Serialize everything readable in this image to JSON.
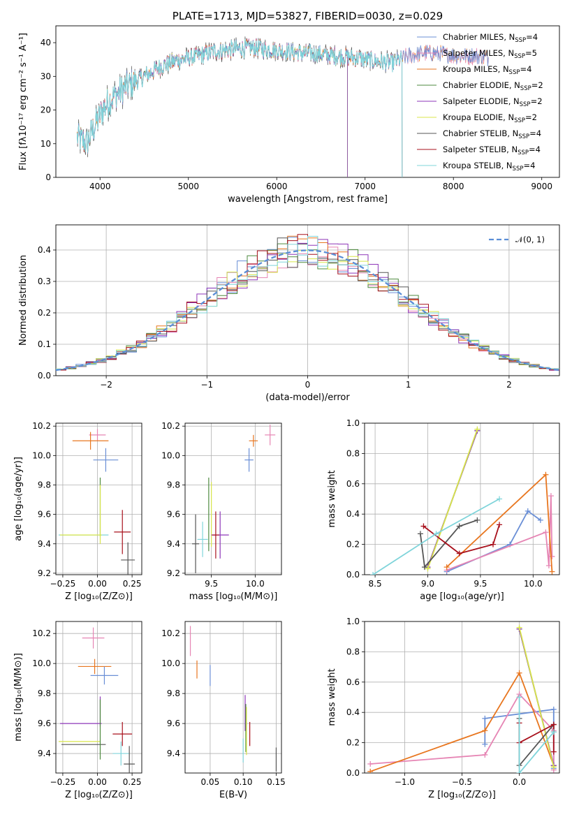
{
  "colors": {
    "chabrier_miles": "#6a8fd6",
    "salpeter_miles": "#e685b4",
    "kroupa_miles": "#e8761f",
    "chabrier_elodie": "#4e8a3f",
    "salpeter_elodie": "#8e36b8",
    "kroupa_elodie": "#d8e64a",
    "chabrier_stelib": "#555555",
    "salpeter_stelib": "#a8101c",
    "kroupa_stelib": "#7fd4da",
    "normal_curve": "#5b8ed6"
  },
  "chart_data": [
    {
      "id": "spectrum",
      "type": "line",
      "title": "PLATE=1713, MJD=53827, FIBERID=0030, z=0.029",
      "xlabel": "wavelength [Angstrom, rest frame]",
      "ylabel": "Flux [fλ10⁻¹⁷ erg cm⁻² s⁻¹ A⁻¹]",
      "xlim": [
        3500,
        9200
      ],
      "ylim": [
        0,
        45
      ],
      "xticks": [
        4000,
        5000,
        6000,
        7000,
        8000,
        9000
      ],
      "yticks": [
        0,
        10,
        20,
        30,
        40
      ],
      "continuum": [
        [
          3740,
          12
        ],
        [
          3850,
          10
        ],
        [
          3950,
          16
        ],
        [
          4050,
          21
        ],
        [
          4150,
          24
        ],
        [
          4300,
          27
        ],
        [
          4500,
          30
        ],
        [
          4700,
          33
        ],
        [
          4900,
          35
        ],
        [
          5100,
          36
        ],
        [
          5300,
          37.5
        ],
        [
          5500,
          38
        ],
        [
          5700,
          38.5
        ],
        [
          5900,
          38
        ],
        [
          6100,
          37.5
        ],
        [
          6300,
          37
        ],
        [
          6500,
          36.5
        ],
        [
          6700,
          36
        ],
        [
          6900,
          35.5
        ],
        [
          7100,
          34.5
        ],
        [
          7300,
          34
        ],
        [
          7500,
          36
        ],
        [
          7700,
          37
        ],
        [
          7900,
          36.5
        ],
        [
          8100,
          36
        ],
        [
          8300,
          36
        ],
        [
          8400,
          35.5
        ]
      ],
      "legend": [
        {
          "name": "Chabrier MILES, N",
          "sub": "SSP",
          "count": "=4",
          "key": "chabrier_miles"
        },
        {
          "name": "Salpeter MILES, N",
          "sub": "SSP",
          "count": "=5",
          "key": "salpeter_miles"
        },
        {
          "name": "Kroupa MILES, N",
          "sub": "SSP",
          "count": "=4",
          "key": "kroupa_miles"
        },
        {
          "name": "Chabrier ELODIE, N",
          "sub": "SSP",
          "count": "=2",
          "key": "chabrier_elodie"
        },
        {
          "name": "Salpeter ELODIE, N",
          "sub": "SSP",
          "count": "=2",
          "key": "salpeter_elodie"
        },
        {
          "name": "Kroupa ELODIE, N",
          "sub": "SSP",
          "count": "=2",
          "key": "kroupa_elodie"
        },
        {
          "name": "Chabrier STELIB, N",
          "sub": "SSP",
          "count": "=4",
          "key": "chabrier_stelib"
        },
        {
          "name": "Salpeter STELIB, N",
          "sub": "SSP",
          "count": "=4",
          "key": "salpeter_stelib"
        },
        {
          "name": "Kroupa STELIB, N",
          "sub": "SSP",
          "count": "=4",
          "key": "kroupa_stelib"
        }
      ],
      "series_end": {
        "miles": 8400,
        "elodie": 6800,
        "stelib": 7420
      }
    },
    {
      "id": "residuals",
      "type": "area",
      "xlabel": "(data-model)/error",
      "ylabel": "Normed distribution",
      "xlim": [
        -2.5,
        2.5
      ],
      "ylim": [
        0,
        0.48
      ],
      "xticks": [
        -2,
        -1,
        0,
        1,
        2
      ],
      "yticks": [
        0.0,
        0.1,
        0.2,
        0.3,
        0.4
      ],
      "legend": "𝒩(0, 1)",
      "bin_width": 0.1
    },
    {
      "id": "age_vs_Z",
      "type": "scatter",
      "xlabel": "Z [log₁₀(Z/Z⊙)]",
      "ylabel": "age  [log₁₀(age/yr)]",
      "xlim": [
        -0.3,
        0.32
      ],
      "ylim": [
        9.19,
        10.22
      ],
      "xticks": [
        -0.25,
        0.0,
        0.25
      ],
      "yticks": [
        9.2,
        9.4,
        9.6,
        9.8,
        10.0,
        10.2
      ],
      "points": [
        {
          "key": "salpeter_miles",
          "x": 0.0,
          "y": 10.14,
          "xe": 0.06,
          "ye": 0.04
        },
        {
          "key": "kroupa_miles",
          "x": -0.05,
          "y": 10.1,
          "xe": 0.13,
          "ye": 0.06
        },
        {
          "key": "chabrier_miles",
          "x": 0.06,
          "y": 9.97,
          "xe": 0.09,
          "ye": 0.08
        },
        {
          "key": "chabrier_elodie",
          "x": 0.02,
          "y": 9.65,
          "xe": 0.0,
          "ye": 0.2
        },
        {
          "key": "kroupa_elodie",
          "x": 0.02,
          "y": 9.6,
          "xe": 0.0,
          "ye": 0.2
        },
        {
          "key": "kroupa_stelib",
          "x": -0.1,
          "y": 9.46,
          "xe": 0.18,
          "ye": 0.0
        },
        {
          "key": "kroupa_elodie",
          "x": -0.12,
          "y": 9.46,
          "xe": 0.15,
          "ye": 0.0
        },
        {
          "key": "salpeter_stelib",
          "x": 0.18,
          "y": 9.48,
          "xe": 0.06,
          "ye": 0.15
        },
        {
          "key": "chabrier_stelib",
          "x": 0.22,
          "y": 9.29,
          "xe": 0.05,
          "ye": 0.12
        }
      ]
    },
    {
      "id": "age_vs_mass",
      "type": "scatter",
      "xlabel": "mass [log₁₀(M/M⊙)]",
      "ylabel": "",
      "xlim": [
        9.2,
        10.3
      ],
      "ylim": [
        9.19,
        10.22
      ],
      "xticks": [
        9.5,
        10.0
      ],
      "yticks": [
        9.2,
        9.4,
        9.6,
        9.8,
        10.0,
        10.2
      ],
      "points": [
        {
          "key": "salpeter_miles",
          "x": 10.17,
          "y": 10.14,
          "xe": 0.06,
          "ye": 0.07
        },
        {
          "key": "kroupa_miles",
          "x": 9.98,
          "y": 10.1,
          "xe": 0.05,
          "ye": 0.04
        },
        {
          "key": "chabrier_miles",
          "x": 9.93,
          "y": 9.97,
          "xe": 0.05,
          "ye": 0.08
        },
        {
          "key": "chabrier_elodie",
          "x": 9.47,
          "y": 9.6,
          "xe": 0.0,
          "ye": 0.25
        },
        {
          "key": "kroupa_elodie",
          "x": 9.5,
          "y": 9.6,
          "xe": 0.0,
          "ye": 0.22
        },
        {
          "key": "salpeter_elodie",
          "x": 9.6,
          "y": 9.46,
          "xe": 0.1,
          "ye": 0.16
        },
        {
          "key": "kroupa_stelib",
          "x": 9.4,
          "y": 9.43,
          "xe": 0.06,
          "ye": 0.12
        },
        {
          "key": "salpeter_stelib",
          "x": 9.55,
          "y": 9.46,
          "xe": 0.04,
          "ye": 0.16
        },
        {
          "key": "chabrier_stelib",
          "x": 9.32,
          "y": 9.4,
          "xe": 0.04,
          "ye": 0.2
        }
      ]
    },
    {
      "id": "weight_vs_age",
      "type": "line",
      "xlabel": "age  [log₁₀(age/yr)]",
      "ylabel": "mass weight",
      "xlim": [
        8.4,
        10.25
      ],
      "ylim": [
        0,
        1.0
      ],
      "xticks": [
        8.5,
        9.0,
        9.5,
        10.0
      ],
      "yticks": [
        0.0,
        0.2,
        0.4,
        0.6,
        0.8,
        1.0
      ],
      "series": [
        {
          "key": "chabrier_miles",
          "x": [
            9.18,
            9.78,
            9.95,
            10.07
          ],
          "y": [
            0.02,
            0.2,
            0.42,
            0.36
          ]
        },
        {
          "key": "salpeter_miles",
          "x": [
            9.18,
            10.12,
            10.15,
            10.17,
            10.18
          ],
          "y": [
            0.03,
            0.28,
            0.06,
            0.52,
            0.12
          ]
        },
        {
          "key": "kroupa_miles",
          "x": [
            9.18,
            10.12,
            10.18
          ],
          "y": [
            0.05,
            0.66,
            0.02
          ]
        },
        {
          "key": "chabrier_elodie",
          "x": [
            9.0,
            9.47
          ],
          "y": [
            0.05,
            0.95
          ]
        },
        {
          "key": "salpeter_elodie",
          "x": [
            9.0,
            9.47
          ],
          "y": [
            0.05,
            0.95
          ]
        },
        {
          "key": "kroupa_elodie",
          "x": [
            9.0,
            9.47
          ],
          "y": [
            0.04,
            0.96
          ]
        },
        {
          "key": "chabrier_stelib",
          "x": [
            8.93,
            8.97,
            9.3,
            9.47
          ],
          "y": [
            0.27,
            0.05,
            0.32,
            0.36
          ]
        },
        {
          "key": "salpeter_stelib",
          "x": [
            8.96,
            9.3,
            9.62,
            9.68
          ],
          "y": [
            0.32,
            0.14,
            0.2,
            0.33
          ]
        },
        {
          "key": "kroupa_stelib",
          "x": [
            8.48,
            9.08,
            9.68
          ],
          "y": [
            0.0,
            0.27,
            0.5
          ]
        }
      ]
    },
    {
      "id": "mass_vs_Z",
      "type": "scatter",
      "xlabel": "Z [log₁₀(Z/Z⊙)]",
      "ylabel": "mass [log₁₀(M/M⊙)]",
      "xlim": [
        -0.3,
        0.32
      ],
      "ylim": [
        9.27,
        10.28
      ],
      "xticks": [
        -0.25,
        0.0,
        0.25
      ],
      "yticks": [
        9.4,
        9.6,
        9.8,
        10.0,
        10.2
      ],
      "points": [
        {
          "key": "salpeter_miles",
          "x": -0.03,
          "y": 10.17,
          "xe": 0.08,
          "ye": 0.07
        },
        {
          "key": "kroupa_miles",
          "x": -0.02,
          "y": 9.98,
          "xe": 0.12,
          "ye": 0.05
        },
        {
          "key": "chabrier_miles",
          "x": 0.05,
          "y": 9.92,
          "xe": 0.1,
          "ye": 0.06
        },
        {
          "key": "salpeter_elodie",
          "x": -0.12,
          "y": 9.6,
          "xe": 0.15,
          "ye": 0.0
        },
        {
          "key": "salpeter_elodie",
          "x": 0.02,
          "y": 9.68,
          "xe": 0.0,
          "ye": 0.1
        },
        {
          "key": "kroupa_elodie",
          "x": -0.13,
          "y": 9.48,
          "xe": 0.15,
          "ye": 0.0
        },
        {
          "key": "chabrier_stelib",
          "x": -0.1,
          "y": 9.46,
          "xe": 0.16,
          "ye": 0.0
        },
        {
          "key": "chabrier_elodie",
          "x": 0.02,
          "y": 9.56,
          "xe": 0.0,
          "ye": 0.2
        },
        {
          "key": "salpeter_stelib",
          "x": 0.18,
          "y": 9.53,
          "xe": 0.07,
          "ye": 0.08
        },
        {
          "key": "kroupa_stelib",
          "x": 0.17,
          "y": 9.4,
          "xe": 0.06,
          "ye": 0.08
        },
        {
          "key": "chabrier_stelib",
          "x": 0.23,
          "y": 9.33,
          "xe": 0.04,
          "ye": 0.12
        }
      ]
    },
    {
      "id": "mass_vs_ebv",
      "type": "scatter",
      "xlabel": "E(B-V)",
      "ylabel": "",
      "xlim": [
        0.012,
        0.158
      ],
      "ylim": [
        9.27,
        10.28
      ],
      "xticks": [
        0.05,
        0.1,
        0.15
      ],
      "yticks": [
        9.4,
        9.6,
        9.8,
        10.0,
        10.2
      ],
      "points": [
        {
          "key": "salpeter_miles",
          "x": 0.02,
          "y": 10.15,
          "xe": 0.0,
          "ye": 0.1
        },
        {
          "key": "kroupa_miles",
          "x": 0.03,
          "y": 9.96,
          "xe": 0.0,
          "ye": 0.06
        },
        {
          "key": "chabrier_miles",
          "x": 0.05,
          "y": 9.92,
          "xe": 0.0,
          "ye": 0.07
        },
        {
          "key": "salpeter_elodie",
          "x": 0.103,
          "y": 9.67,
          "xe": 0.0,
          "ye": 0.12
        },
        {
          "key": "chabrier_elodie",
          "x": 0.104,
          "y": 9.57,
          "xe": 0.0,
          "ye": 0.16
        },
        {
          "key": "kroupa_elodie",
          "x": 0.105,
          "y": 9.55,
          "xe": 0.0,
          "ye": 0.16
        },
        {
          "key": "salpeter_stelib",
          "x": 0.11,
          "y": 9.53,
          "xe": 0.0,
          "ye": 0.08
        },
        {
          "key": "kroupa_stelib",
          "x": 0.1,
          "y": 9.42,
          "xe": 0.0,
          "ye": 0.08
        },
        {
          "key": "chabrier_stelib",
          "x": 0.15,
          "y": 9.36,
          "xe": 0.0,
          "ye": 0.08
        }
      ]
    },
    {
      "id": "weight_vs_Z",
      "type": "line",
      "xlabel": "Z [log₁₀(Z/Z⊙)]",
      "ylabel": "mass weight",
      "xlim": [
        -1.35,
        0.35
      ],
      "ylim": [
        0,
        1.0
      ],
      "xticks": [
        -1.0,
        -0.5,
        0.0
      ],
      "yticks": [
        0.0,
        0.2,
        0.4,
        0.6,
        0.8,
        1.0
      ],
      "series": [
        {
          "key": "chabrier_miles",
          "x": [
            -0.3,
            -0.3,
            0.3,
            0.3
          ],
          "y": [
            0.19,
            0.36,
            0.42,
            0.03
          ]
        },
        {
          "key": "salpeter_miles",
          "x": [
            -1.3,
            -0.3,
            0.0,
            0.3,
            0.3
          ],
          "y": [
            0.06,
            0.12,
            0.52,
            0.28,
            0.02
          ]
        },
        {
          "key": "kroupa_miles",
          "x": [
            -1.3,
            -0.3,
            0.0,
            0.3
          ],
          "y": [
            0.01,
            0.28,
            0.66,
            0.05
          ]
        },
        {
          "key": "chabrier_elodie",
          "x": [
            0.0,
            0.3
          ],
          "y": [
            0.95,
            0.05
          ]
        },
        {
          "key": "salpeter_elodie",
          "x": [
            0.0,
            0.3
          ],
          "y": [
            0.95,
            0.05
          ]
        },
        {
          "key": "kroupa_elodie",
          "x": [
            0.0,
            0.3
          ],
          "y": [
            0.96,
            0.04
          ]
        },
        {
          "key": "chabrier_stelib",
          "x": [
            0.0,
            0.0,
            0.3,
            0.3
          ],
          "y": [
            0.36,
            0.05,
            0.32,
            0.27
          ]
        },
        {
          "key": "salpeter_stelib",
          "x": [
            0.0,
            0.0,
            0.3,
            0.3
          ],
          "y": [
            0.33,
            0.2,
            0.32,
            0.14
          ]
        },
        {
          "key": "kroupa_stelib",
          "x": [
            0.0,
            0.0,
            0.3
          ],
          "y": [
            0.5,
            0.0,
            0.27
          ]
        }
      ]
    }
  ]
}
